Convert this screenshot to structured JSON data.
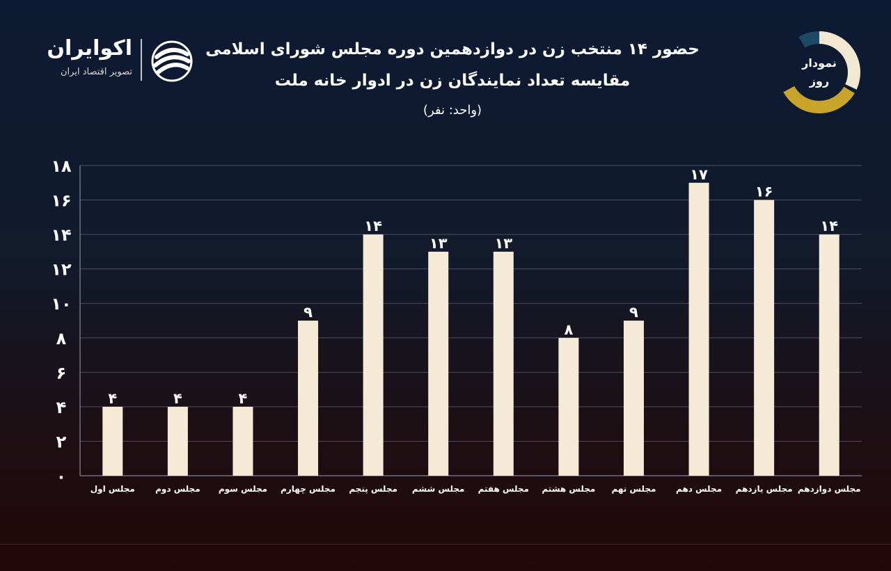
{
  "header": {
    "title_line1": "حضور ۱۴ منتخب زن در دوازدهمین دوره مجلس شورای اسلامی",
    "title_line2": "مقایسه تعداد نمایندگان زن در ادوار خانه ملت",
    "unit": "(واحد: نفر)"
  },
  "logo": {
    "name": "اکوایران",
    "subtitle": "تصویر اقتصاد ایران",
    "mark_icon": "ekoiran-swirl-icon"
  },
  "badge": {
    "line1": "نمودار",
    "line2": "روز",
    "colors": [
      "#f2e8d2",
      "#c8a42a",
      "#1f4a63"
    ]
  },
  "chart_data": {
    "type": "bar",
    "categories": [
      "مجلس اول",
      "مجلس دوم",
      "مجلس سوم",
      "مجلس چهارم",
      "مجلس پنجم",
      "مجلس ششم",
      "مجلس هفتم",
      "مجلس هشتم",
      "مجلس نهم",
      "مجلس دهم",
      "مجلس یازدهم",
      "مجلس دوازدهم"
    ],
    "values": [
      4,
      4,
      4,
      9,
      14,
      13,
      13,
      8,
      9,
      17,
      16,
      14
    ],
    "value_labels": [
      "۴",
      "۴",
      "۴",
      "۹",
      "۱۴",
      "۱۳",
      "۱۳",
      "۸",
      "۹",
      "۱۷",
      "۱۶",
      "۱۴"
    ],
    "yticks": [
      0,
      2,
      4,
      6,
      8,
      10,
      12,
      14,
      16,
      18
    ],
    "ytick_labels": [
      "۰",
      "۲",
      "۴",
      "۶",
      "۸",
      "۱۰",
      "۱۲",
      "۱۴",
      "۱۶",
      "۱۸"
    ],
    "ylim": [
      0,
      18
    ],
    "grid": true,
    "bar_color": "#f4ead6",
    "grid_color": "#6b7690"
  }
}
